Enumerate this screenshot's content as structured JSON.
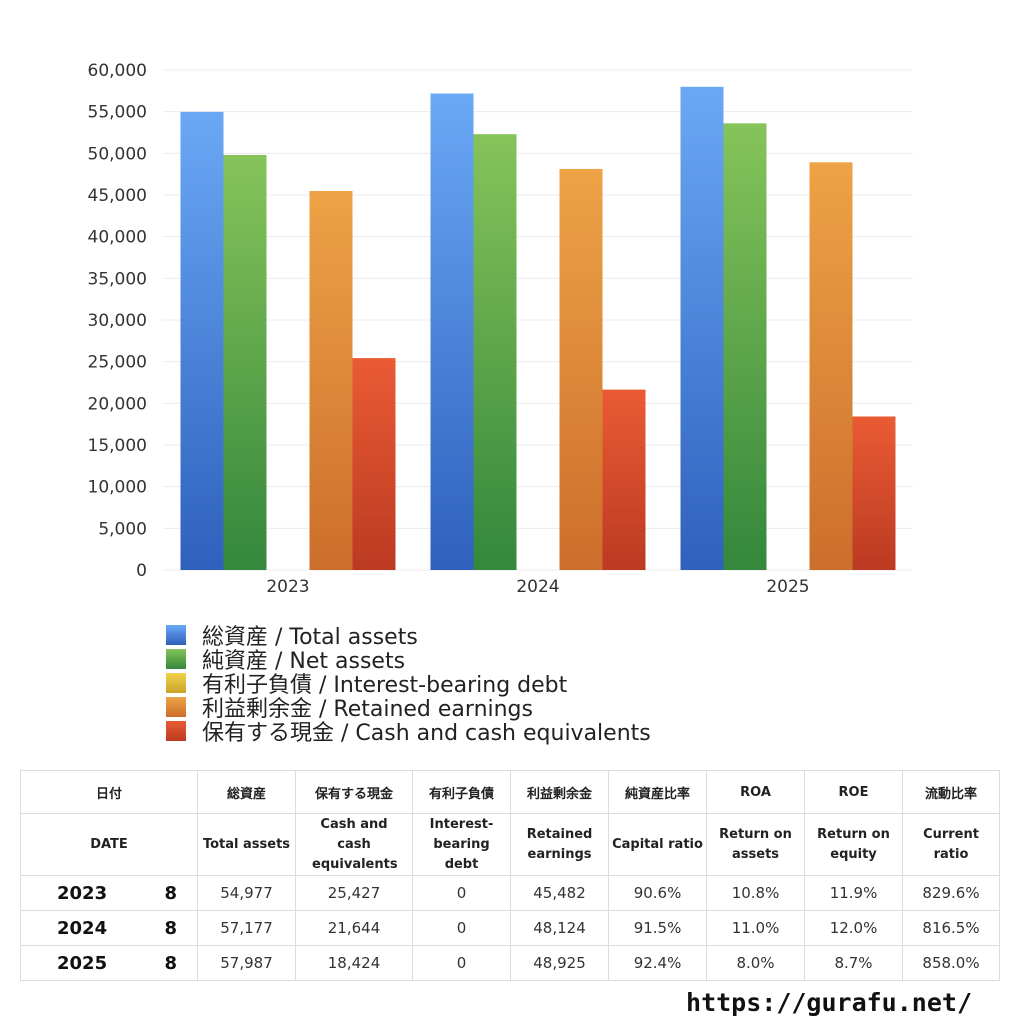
{
  "chart_data": {
    "type": "bar",
    "categories": [
      "2023",
      "2024",
      "2025"
    ],
    "ylim": [
      0,
      60000
    ],
    "yticks": [
      0,
      5000,
      10000,
      15000,
      20000,
      25000,
      30000,
      35000,
      40000,
      45000,
      50000,
      55000,
      60000
    ],
    "ytick_labels": [
      "0",
      "5,000",
      "10,000",
      "15,000",
      "20,000",
      "25,000",
      "30,000",
      "35,000",
      "40,000",
      "45,000",
      "50,000",
      "55,000",
      "60,000"
    ],
    "grid": true,
    "legend_position": "bottom",
    "series": [
      {
        "name": "総資産 / Total assets",
        "values": [
          54977,
          57177,
          57987
        ],
        "color_top": "#6aa8f5",
        "color_bottom": "#2f60bd"
      },
      {
        "name": "純資産 / Net assets",
        "values": [
          49800,
          52300,
          53600
        ],
        "color_top": "#86c45a",
        "color_bottom": "#34873c"
      },
      {
        "name": "有利子負債 / Interest-bearing debt",
        "values": [
          0,
          0,
          0
        ],
        "color_top": "#f0d24a",
        "color_bottom": "#c8a52a"
      },
      {
        "name": "利益剰余金 / Retained earnings",
        "values": [
          45482,
          48124,
          48925
        ],
        "color_top": "#eda346",
        "color_bottom": "#cc6e2c"
      },
      {
        "name": "保有する現金 /  Cash and cash equivalents",
        "values": [
          25427,
          21644,
          18424
        ],
        "color_top": "#ea5b34",
        "color_bottom": "#bb3a22"
      }
    ]
  },
  "table": {
    "header_jp": [
      "日付",
      "総資産",
      "保有する現金",
      "有利子負債",
      "利益剰余金",
      "純資産比率",
      "ROA",
      "ROE",
      "流動比率"
    ],
    "header_en": [
      "DATE",
      "Total assets",
      "Cash and cash equivalents",
      "Interest-bearing debt",
      "Retained earnings",
      "Capital ratio",
      "Return on assets",
      "Return on equity",
      "Current ratio"
    ],
    "rows": [
      {
        "year": "2023",
        "month": "8",
        "values": [
          "54,977",
          "25,427",
          "0",
          "45,482",
          "90.6%",
          "10.8%",
          "11.9%",
          "829.6%"
        ]
      },
      {
        "year": "2024",
        "month": "8",
        "values": [
          "57,177",
          "21,644",
          "0",
          "48,124",
          "91.5%",
          "11.0%",
          "12.0%",
          "816.5%"
        ]
      },
      {
        "year": "2025",
        "month": "8",
        "values": [
          "57,987",
          "18,424",
          "0",
          "48,925",
          "92.4%",
          "8.0%",
          "8.7%",
          "858.0%"
        ]
      }
    ]
  },
  "footer": {
    "url": "https://gurafu.net/"
  }
}
